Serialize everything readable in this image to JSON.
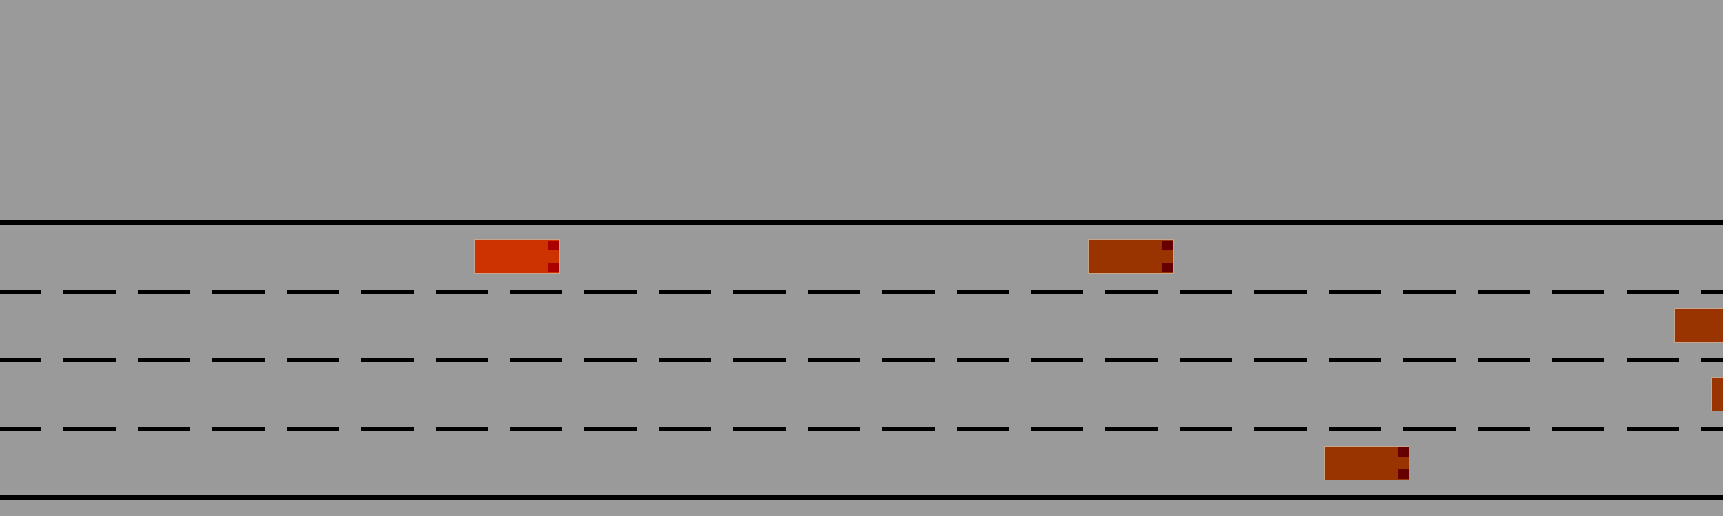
{
  "scene": {
    "background_color": "#9a9a9a",
    "line_color": "#000000"
  },
  "road": {
    "lanes": 4,
    "edge_lines": [
      "solid",
      "solid"
    ],
    "divider_style": "dashed"
  },
  "vehicles": [
    {
      "id": "player",
      "lane": 1,
      "body_color": "#cc3300",
      "light_color": "#aa0000",
      "facing": "right"
    },
    {
      "id": "npc-1",
      "lane": 1,
      "body_color": "#993300",
      "light_color": "#660000",
      "facing": "right"
    },
    {
      "id": "npc-2",
      "lane": 2,
      "body_color": "#993300",
      "light_color": "#660000",
      "facing": "right"
    },
    {
      "id": "npc-3",
      "lane": 3,
      "body_color": "#993300",
      "light_color": "#660000",
      "facing": "right"
    },
    {
      "id": "npc-4",
      "lane": 4,
      "body_color": "#993300",
      "light_color": "#660000",
      "facing": "right"
    }
  ]
}
